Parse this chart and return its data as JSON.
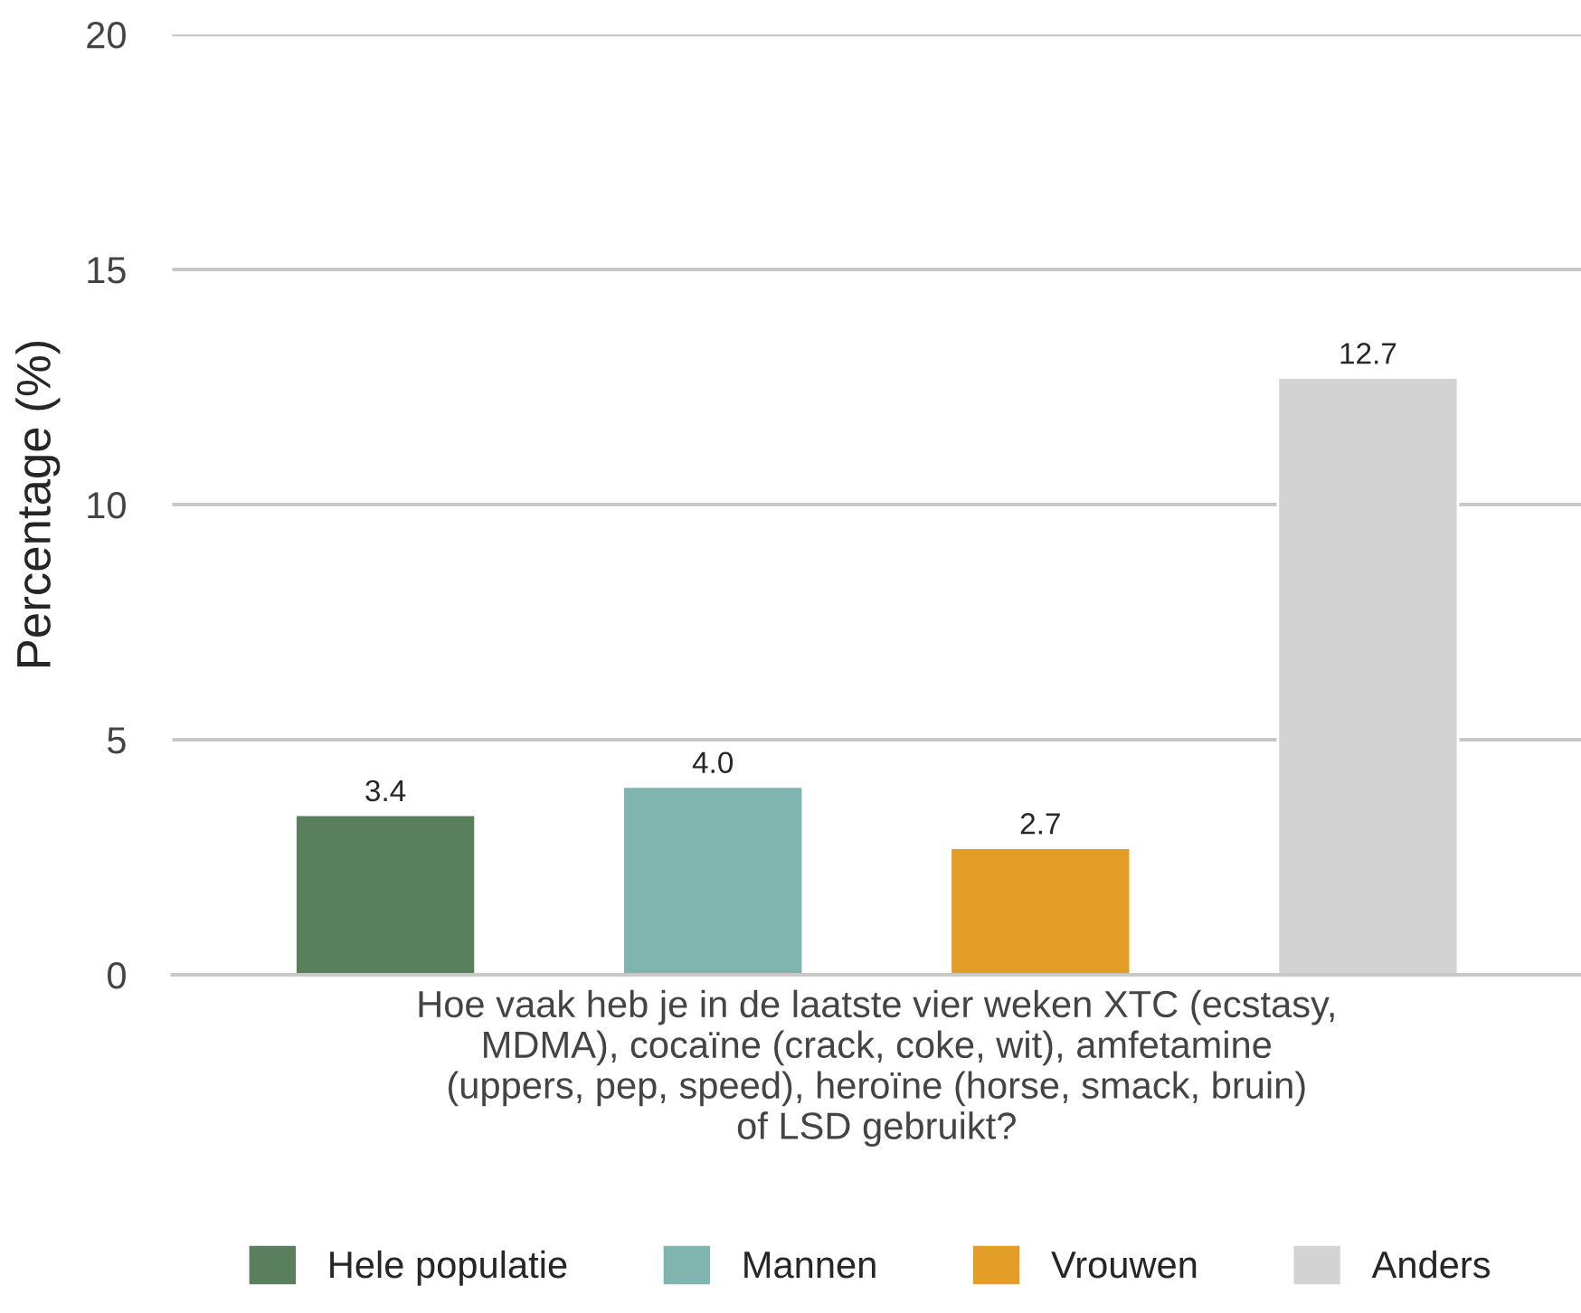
{
  "chart_data": {
    "type": "bar",
    "categories": [
      "Hoe vaak heb je in de laatste vier weken XTC (ecstasy,\nMDMA), cocaïne (crack, coke, wit), amfetamine\n(uppers, pep, speed), heroïne (horse, smack, bruin)\nof LSD gebruikt?"
    ],
    "series": [
      {
        "name": "Hele populatie",
        "color": "#5a7f5c",
        "values": [
          3.4
        ],
        "value_labels": [
          "3.4"
        ]
      },
      {
        "name": "Mannen",
        "color": "#80b4ae",
        "values": [
          4.0
        ],
        "value_labels": [
          "4.0"
        ]
      },
      {
        "name": "Vrouwen",
        "color": "#e39c26",
        "values": [
          2.7
        ],
        "value_labels": [
          "2.7"
        ]
      },
      {
        "name": "Anders",
        "color": "#d3d3d3",
        "values": [
          12.7
        ],
        "value_labels": [
          "12.7"
        ]
      }
    ],
    "ylabel": "Percentage (%)",
    "ylim": [
      0,
      20
    ],
    "yticks": [
      0,
      5,
      10,
      15,
      20
    ],
    "grid": "y",
    "legend": "bottom"
  }
}
